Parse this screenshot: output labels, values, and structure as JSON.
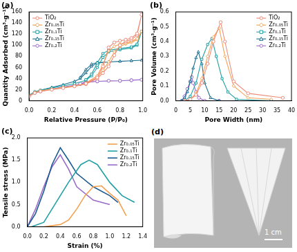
{
  "chart_data": [
    {
      "type": "line",
      "title": "(a)",
      "x_label": "Relative Pressure (P/P₀)",
      "y_label": "Quantity Adsorbed (cm³·g⁻¹)",
      "xlim": [
        0,
        1.0
      ],
      "xticks": [
        {
          "value": 0,
          "label": "0.0"
        },
        0.2,
        0.4,
        0.6,
        0.8,
        {
          "value": 1.0,
          "label": "1.0"
        }
      ],
      "ylim": [
        0,
        160
      ],
      "yticks": [
        0,
        20,
        40,
        60,
        80,
        100,
        120,
        140,
        160
      ],
      "grid": false,
      "legend": "top left",
      "series": [
        {
          "name": "TiO₂",
          "color": "#f08a78",
          "marker": "circle",
          "x": [
            0.0,
            0.05,
            0.1,
            0.2,
            0.3,
            0.4,
            0.5,
            0.6,
            0.65,
            0.7,
            0.75,
            0.8,
            0.85,
            0.9,
            0.95,
            0.99,
            0.95,
            0.9,
            0.85,
            0.8,
            0.75,
            0.7,
            0.65,
            0.6,
            0.5
          ],
          "values": [
            8,
            14,
            17,
            20,
            23,
            26,
            30,
            40,
            50,
            62,
            82,
            100,
            107,
            110,
            118,
            155,
            121,
            113,
            110,
            108,
            105,
            96,
            62,
            42,
            31
          ]
        },
        {
          "name": "Zr₀.₀₅Ti",
          "color": "#f5a050",
          "marker": "diamond",
          "x": [
            0.0,
            0.05,
            0.1,
            0.2,
            0.3,
            0.4,
            0.5,
            0.6,
            0.65,
            0.7,
            0.75,
            0.8,
            0.85,
            0.9,
            0.95,
            0.99,
            0.95,
            0.9,
            0.85,
            0.8,
            0.75,
            0.7,
            0.65,
            0.6,
            0.5
          ],
          "values": [
            9,
            15,
            18,
            21,
            24,
            27,
            31,
            42,
            55,
            70,
            88,
            98,
            102,
            105,
            110,
            125,
            112,
            107,
            104,
            102,
            98,
            90,
            65,
            45,
            32
          ]
        },
        {
          "name": "Zr₀.₁Ti",
          "color": "#20a0a4",
          "marker": "square",
          "x": [
            0.0,
            0.05,
            0.1,
            0.2,
            0.3,
            0.4,
            0.5,
            0.55,
            0.6,
            0.65,
            0.7,
            0.8,
            0.9,
            0.95,
            0.99,
            0.95,
            0.9,
            0.8,
            0.7,
            0.65,
            0.6,
            0.55,
            0.5
          ],
          "values": [
            10,
            16,
            19,
            23,
            27,
            31,
            37,
            45,
            60,
            78,
            88,
            92,
            95,
            100,
            125,
            102,
            97,
            94,
            91,
            85,
            68,
            48,
            38
          ]
        },
        {
          "name": "Zr₀.₁₅Ti",
          "color": "#1a6e90",
          "marker": "triangle",
          "x": [
            0.0,
            0.05,
            0.1,
            0.2,
            0.3,
            0.4,
            0.45,
            0.5,
            0.55,
            0.6,
            0.7,
            0.8,
            0.9,
            0.99,
            0.9,
            0.8,
            0.7,
            0.6,
            0.55,
            0.5,
            0.45
          ],
          "values": [
            10,
            16,
            19,
            24,
            29,
            35,
            40,
            50,
            62,
            68,
            70,
            71,
            72,
            73,
            72,
            71,
            70,
            69,
            66,
            56,
            42
          ]
        },
        {
          "name": "Zr₀.₂Ti",
          "color": "#9a6cc8",
          "marker": "circle",
          "x": [
            0.0,
            0.05,
            0.1,
            0.2,
            0.3,
            0.4,
            0.45,
            0.5,
            0.6,
            0.7,
            0.8,
            0.9,
            0.99,
            0.9,
            0.8,
            0.6,
            0.5,
            0.45
          ],
          "values": [
            9,
            14,
            17,
            21,
            25,
            28,
            30,
            33,
            35,
            36,
            36,
            37,
            38,
            37,
            36,
            35,
            34,
            31
          ]
        }
      ]
    },
    {
      "type": "line",
      "title": "(b)",
      "x_label": "Pore Width (nm)",
      "y_label": "Pore Volume (cm³·g⁻¹)",
      "xlim": [
        0,
        40
      ],
      "xticks": [
        0,
        5,
        10,
        15,
        20,
        25,
        30,
        35,
        40
      ],
      "ylim": [
        0,
        0.6
      ],
      "yticks": [
        {
          "value": 0,
          "label": "0.0"
        },
        0.1,
        0.2,
        0.3,
        0.4,
        0.5,
        0.6
      ],
      "grid": false,
      "legend": "top right",
      "series": [
        {
          "name": "TiO₂",
          "color": "#f08a78",
          "marker": "circle",
          "x": [
            3,
            5,
            7,
            9,
            11,
            13,
            15.5,
            17,
            20,
            25,
            37
          ],
          "values": [
            0.0,
            0.01,
            0.04,
            0.12,
            0.25,
            0.4,
            0.53,
            0.4,
            0.13,
            0.05,
            0.02
          ]
        },
        {
          "name": "Zr₀.₀₅Ti",
          "color": "#f5a050",
          "marker": "diamond",
          "x": [
            3,
            5,
            7,
            9,
            11,
            13,
            15,
            17,
            20,
            25,
            33
          ],
          "values": [
            0.0,
            0.01,
            0.05,
            0.15,
            0.3,
            0.43,
            0.49,
            0.3,
            0.1,
            0.02,
            0.01
          ]
        },
        {
          "name": "Zr₀.₁Ti",
          "color": "#20a0a4",
          "marker": "square",
          "x": [
            3,
            5,
            7,
            9,
            11,
            12.5,
            14,
            16,
            18,
            21,
            33
          ],
          "values": [
            0.0,
            0.03,
            0.12,
            0.28,
            0.38,
            0.42,
            0.3,
            0.15,
            0.06,
            0.01,
            0.0
          ]
        },
        {
          "name": "Zr₀.₁₅Ti",
          "color": "#1a6e90",
          "marker": "triangle",
          "x": [
            2,
            3,
            4,
            5,
            6,
            7,
            7.8,
            9,
            10,
            12,
            15,
            33
          ],
          "values": [
            0.0,
            0.02,
            0.06,
            0.13,
            0.22,
            0.29,
            0.33,
            0.25,
            0.12,
            0.02,
            0.0,
            0.0
          ]
        },
        {
          "name": "Zr₀.₂Ti",
          "color": "#9a6cc8",
          "marker": "circle",
          "x": [
            2,
            3,
            4,
            5,
            5.5,
            6,
            7,
            8,
            10,
            15,
            33
          ],
          "values": [
            0.0,
            0.03,
            0.08,
            0.13,
            0.16,
            0.12,
            0.06,
            0.02,
            0.0,
            0.0,
            0.0
          ]
        }
      ]
    },
    {
      "type": "line",
      "title": "(c)",
      "x_label": "Strain (%)",
      "y_label": "Tensile stress (MPa)",
      "xlim": [
        0,
        1.4
      ],
      "xticks": [
        {
          "value": 0,
          "label": "0.0"
        },
        0.2,
        0.4,
        0.6,
        0.8,
        {
          "value": 1.0,
          "label": "1.0"
        },
        1.2,
        1.4
      ],
      "ylim": [
        0,
        2.0
      ],
      "yticks": [
        {
          "value": 0,
          "label": "0.0"
        },
        0.5,
        {
          "value": 1.0,
          "label": "1.0"
        },
        1.5,
        {
          "value": 2.0,
          "label": "2.0"
        }
      ],
      "grid": false,
      "legend": "top right",
      "series": [
        {
          "name": "Zr₀.₀₅Ti",
          "color": "#f5a050",
          "marker": "none",
          "x": [
            0.2,
            0.4,
            0.5,
            0.6,
            0.7,
            0.8,
            0.9,
            1.0,
            1.1,
            1.2
          ],
          "values": [
            0.0,
            0.05,
            0.15,
            0.4,
            0.7,
            0.9,
            0.92,
            0.75,
            0.6,
            0.25
          ]
        },
        {
          "name": "Zr₀.₁Ti",
          "color": "#20a0a4",
          "marker": "none",
          "x": [
            0.05,
            0.2,
            0.3,
            0.5,
            0.65,
            0.75,
            0.85,
            1.0,
            1.15,
            1.3
          ],
          "values": [
            0.0,
            0.1,
            0.4,
            1.0,
            1.4,
            1.5,
            1.4,
            1.0,
            0.7,
            0.55
          ]
        },
        {
          "name": "Zr₀.₁₅Ti",
          "color": "#1a5a90",
          "marker": "none",
          "x": [
            0.0,
            0.1,
            0.2,
            0.3,
            0.4,
            0.5,
            0.6,
            0.8,
            1.0,
            1.1
          ],
          "values": [
            0.0,
            0.3,
            0.8,
            1.4,
            1.78,
            1.5,
            1.2,
            0.9,
            0.7,
            0.55
          ]
        },
        {
          "name": "Zr₀.₂Ti",
          "color": "#9a6cc8",
          "marker": "none",
          "x": [
            0.0,
            0.1,
            0.2,
            0.3,
            0.4,
            0.5,
            0.6,
            0.8,
            1.0
          ],
          "values": [
            0.0,
            0.4,
            0.9,
            1.35,
            1.62,
            1.3,
            0.9,
            0.6,
            0.5
          ]
        }
      ]
    }
  ],
  "photo_panel": {
    "title": "(d)",
    "scale_bar": "1 cm"
  }
}
